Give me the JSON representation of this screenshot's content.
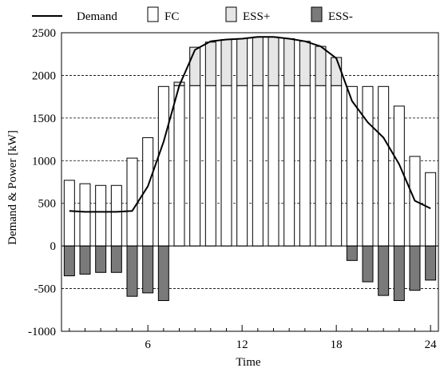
{
  "chart_data": {
    "type": "bar",
    "xlabel": "Time",
    "ylabel": "Demand & Power [kW]",
    "ylim": [
      -1000,
      2500
    ],
    "yticks": [
      -1000,
      -500,
      0,
      500,
      1000,
      1500,
      2000,
      2500
    ],
    "xlim": [
      0.5,
      24.5
    ],
    "xticks": [
      6,
      12,
      18,
      24
    ],
    "grid": "horizontal dashed",
    "legend_position": "top",
    "x": [
      1,
      2,
      3,
      4,
      5,
      6,
      7,
      8,
      9,
      10,
      11,
      12,
      13,
      14,
      15,
      16,
      17,
      18,
      19,
      20,
      21,
      22,
      23,
      24
    ],
    "series": [
      {
        "name": "Demand",
        "kind": "line",
        "color": "#000000",
        "values": [
          410,
          400,
          400,
          400,
          410,
          700,
          1220,
          1880,
          2300,
          2400,
          2420,
          2430,
          2450,
          2450,
          2430,
          2400,
          2340,
          2200,
          1700,
          1450,
          1270,
          960,
          530,
          440
        ]
      },
      {
        "name": "FC",
        "kind": "bar",
        "color": "#ffffff",
        "values": [
          770,
          730,
          710,
          710,
          1030,
          1270,
          1870,
          1880,
          1880,
          1880,
          1880,
          1880,
          1880,
          1880,
          1880,
          1880,
          1880,
          1880,
          1870,
          1870,
          1870,
          1640,
          1050,
          860
        ]
      },
      {
        "name": "ESS+",
        "kind": "bar-stacked-on-FC",
        "color": "#e6e6e6",
        "values": [
          0,
          0,
          0,
          0,
          0,
          0,
          0,
          40,
          450,
          510,
          540,
          550,
          570,
          570,
          550,
          520,
          460,
          330,
          0,
          0,
          0,
          0,
          0,
          0
        ]
      },
      {
        "name": "ESS-",
        "kind": "bar",
        "color": "#7a7a7a",
        "values": [
          -350,
          -330,
          -310,
          -310,
          -590,
          -550,
          -640,
          0,
          0,
          0,
          0,
          0,
          0,
          0,
          0,
          0,
          0,
          0,
          -170,
          -420,
          -580,
          -640,
          -520,
          -400
        ]
      }
    ]
  }
}
